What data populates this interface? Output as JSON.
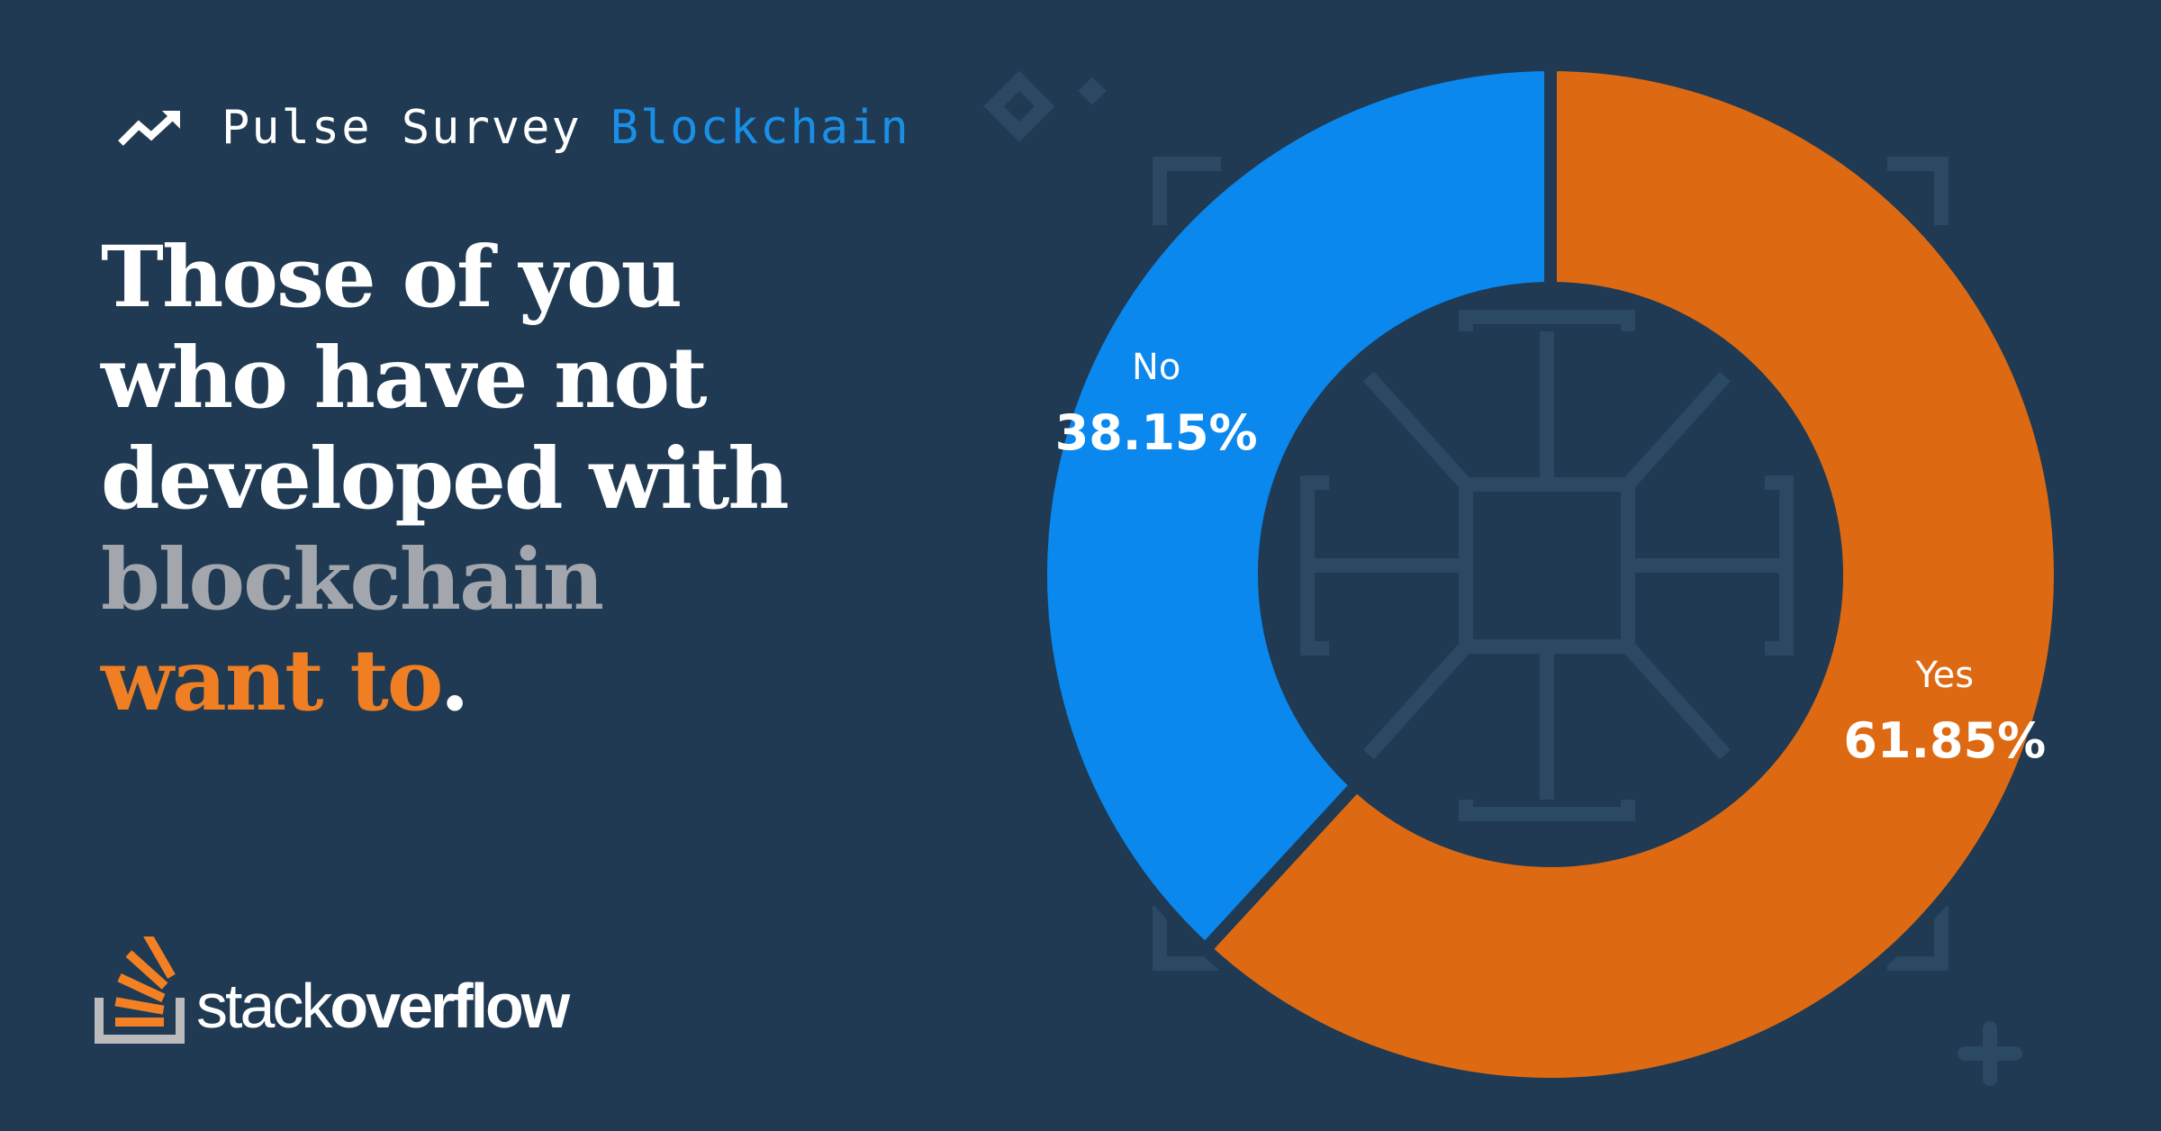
{
  "header": {
    "title": "Pulse Survey",
    "topic": "Blockchain",
    "icon": "trending-up-icon"
  },
  "headline": {
    "line1": "Those of you",
    "line2": "who have not",
    "line3": "developed with",
    "line4": "blockchain",
    "line5": "want to",
    "line5_end": "."
  },
  "logo": {
    "word1": "stack",
    "word2": "overflow"
  },
  "colors": {
    "background": "#1f3a52",
    "accent_blue": "#0a88ee",
    "accent_orange": "#dd6a13",
    "highlight_gray": "#a3a7ad",
    "highlight_orange": "#ef7f22"
  },
  "chart_data": {
    "type": "pie",
    "title": "",
    "categories": [
      "No",
      "Yes"
    ],
    "values": [
      38.15,
      61.85
    ],
    "value_labels": [
      "38.15%",
      "61.85%"
    ],
    "colors": [
      "#0a88ee",
      "#dd6a13"
    ],
    "donut": true
  }
}
